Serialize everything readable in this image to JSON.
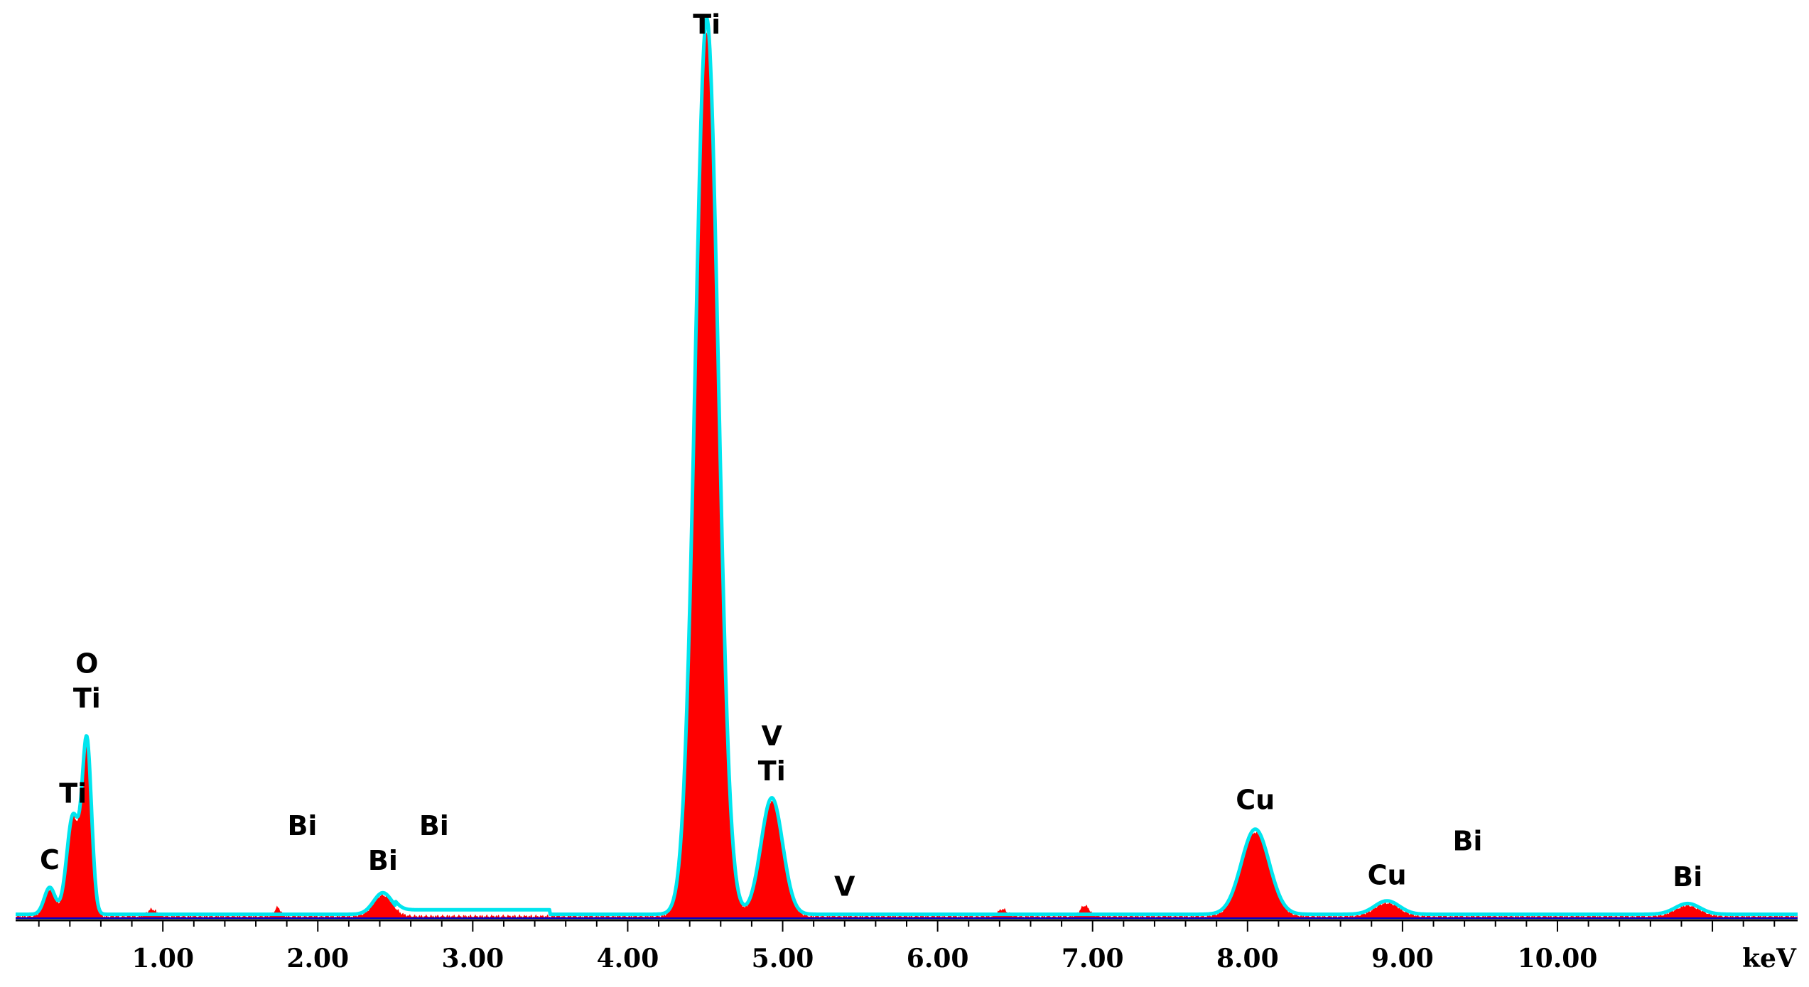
{
  "chart_data": {
    "type": "area",
    "xlabel": "keV",
    "xlim": [
      -0.95,
      10.55
    ],
    "ylim": [
      0,
      100
    ],
    "x_ticks": [
      "1.00",
      "2.00",
      "3.00",
      "4.00",
      "5.00",
      "6.00",
      "7.00",
      "8.00",
      "9.00",
      "10.00"
    ],
    "x_tick_values": [
      0,
      1,
      2,
      3,
      4,
      5,
      6,
      7,
      8,
      9
    ],
    "colors": {
      "spectrum_fill": "#ff0000",
      "fit_line": "#00e5ee",
      "baseline": "#0000cc"
    },
    "peaks": [
      {
        "x": -0.73,
        "height": 3.0,
        "width": 0.035
      },
      {
        "x": -0.58,
        "height": 11.0,
        "width": 0.04
      },
      {
        "x": -0.49,
        "height": 19.0,
        "width": 0.03
      },
      {
        "x": 1.42,
        "height": 2.4,
        "width": 0.06
      },
      {
        "x": 3.51,
        "height": 100,
        "width": 0.075
      },
      {
        "x": 3.93,
        "height": 13.0,
        "width": 0.07
      },
      {
        "x": 7.05,
        "height": 9.5,
        "width": 0.09
      },
      {
        "x": 7.9,
        "height": 1.5,
        "width": 0.08
      },
      {
        "x": 9.84,
        "height": 1.2,
        "width": 0.08
      }
    ],
    "bumps": [
      {
        "x": 5.42,
        "height": 0.8,
        "width": 0.03
      },
      {
        "x": 5.95,
        "height": 1.2,
        "width": 0.03
      },
      {
        "x": 0.74,
        "height": 1.0,
        "width": 0.02
      },
      {
        "x": -0.07,
        "height": 0.8,
        "width": 0.03
      }
    ],
    "peak_labels": [
      {
        "text": "C",
        "x": -0.73,
        "y": 5.4
      },
      {
        "text": "Ti",
        "x": -0.58,
        "y": 12.8
      },
      {
        "text": "Ti",
        "x": -0.49,
        "y": 23.4
      },
      {
        "text": "O",
        "x": -0.49,
        "y": 27.3
      },
      {
        "text": "Bi",
        "x": 0.9,
        "y": 9.2
      },
      {
        "text": "Bi",
        "x": 1.42,
        "y": 5.3
      },
      {
        "text": "Bi",
        "x": 1.75,
        "y": 9.2
      },
      {
        "text": "Ti",
        "x": 3.51,
        "y": 98.6
      },
      {
        "text": "V",
        "x": 3.93,
        "y": 19.2
      },
      {
        "text": "Ti",
        "x": 3.93,
        "y": 15.3
      },
      {
        "text": "V",
        "x": 4.4,
        "y": 2.4
      },
      {
        "text": "Cu",
        "x": 7.05,
        "y": 12.1
      },
      {
        "text": "Cu",
        "x": 7.9,
        "y": 3.7
      },
      {
        "text": "Bi",
        "x": 8.42,
        "y": 7.5
      },
      {
        "text": "Bi",
        "x": 9.84,
        "y": 3.5
      }
    ]
  }
}
